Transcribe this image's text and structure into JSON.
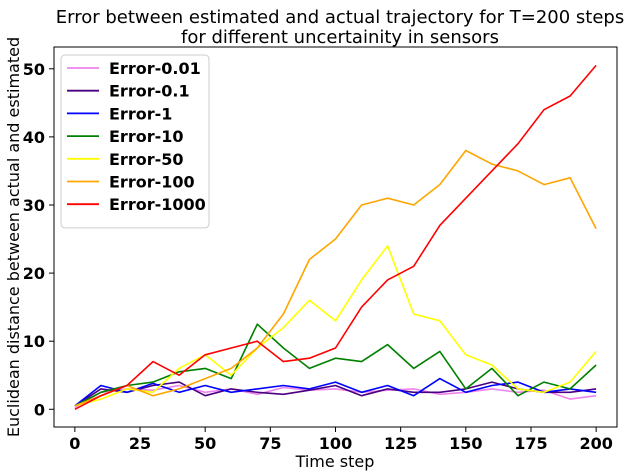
{
  "chart_data": {
    "type": "line",
    "title": "Error between estimated and actual trajectory for T=200 steps",
    "subtitle": "for different uncertainity in sensors",
    "xlabel": "Time step",
    "ylabel": "Euclidean distance between actual and estimated",
    "xlim": [
      -8,
      208
    ],
    "ylim": [
      -2.6,
      53.2
    ],
    "xticks": [
      0,
      25,
      50,
      75,
      100,
      125,
      150,
      175,
      200
    ],
    "yticks": [
      0,
      10,
      20,
      30,
      40,
      50
    ],
    "grid": false,
    "legend_position": "top-left",
    "x": [
      0,
      10,
      20,
      30,
      40,
      50,
      60,
      70,
      80,
      90,
      100,
      110,
      120,
      130,
      140,
      150,
      160,
      170,
      180,
      190,
      200
    ],
    "series": [
      {
        "name": "Error-0.01",
        "color": "#ee82ee",
        "values": [
          0.3,
          2.5,
          3.0,
          2.8,
          3.5,
          2.5,
          3.0,
          2.2,
          3.2,
          2.8,
          3.0,
          2.5,
          2.8,
          3.0,
          2.2,
          2.5,
          3.0,
          2.5,
          2.8,
          1.5,
          2.0
        ]
      },
      {
        "name": "Error-0.1",
        "color": "#4b0082",
        "values": [
          0.5,
          3.0,
          2.5,
          3.5,
          4.0,
          2.0,
          3.0,
          2.5,
          2.2,
          2.8,
          3.5,
          2.0,
          3.0,
          2.5,
          2.5,
          3.0,
          4.0,
          3.0,
          2.5,
          2.5,
          3.0
        ]
      },
      {
        "name": "Error-1",
        "color": "#0000ff",
        "values": [
          0.5,
          3.5,
          2.5,
          3.8,
          2.5,
          3.5,
          2.5,
          3.0,
          3.5,
          3.0,
          4.0,
          2.5,
          3.5,
          2.0,
          4.5,
          2.5,
          3.5,
          4.0,
          2.5,
          3.0,
          2.5
        ]
      },
      {
        "name": "Error-10",
        "color": "#008000",
        "values": [
          0.5,
          2.5,
          3.5,
          4.0,
          5.5,
          6.0,
          4.5,
          12.5,
          9.0,
          6.0,
          7.5,
          7.0,
          9.5,
          6.0,
          8.5,
          3.0,
          6.0,
          2.0,
          4.0,
          3.0,
          6.5
        ]
      },
      {
        "name": "Error-50",
        "color": "#ffff00",
        "values": [
          0.5,
          1.5,
          3.0,
          2.5,
          6.0,
          8.0,
          5.0,
          9.0,
          12.0,
          16.0,
          13.0,
          19.0,
          24.0,
          14.0,
          13.0,
          8.0,
          6.5,
          3.0,
          2.5,
          4.0,
          8.5
        ]
      },
      {
        "name": "Error-100",
        "color": "#ffa500",
        "values": [
          0.5,
          2.0,
          3.5,
          2.0,
          3.0,
          4.5,
          6.0,
          9.0,
          14.0,
          22.0,
          25.0,
          30.0,
          31.0,
          30.0,
          33.0,
          38.0,
          36.0,
          35.0,
          33.0,
          34.0,
          26.5
        ]
      },
      {
        "name": "Error-1000",
        "color": "#ff0000",
        "values": [
          0.0,
          2.0,
          3.5,
          7.0,
          5.0,
          8.0,
          9.0,
          10.0,
          7.0,
          7.5,
          9.0,
          15.0,
          19.0,
          21.0,
          27.0,
          31.0,
          35.0,
          39.0,
          44.0,
          46.0,
          50.5
        ]
      }
    ]
  }
}
